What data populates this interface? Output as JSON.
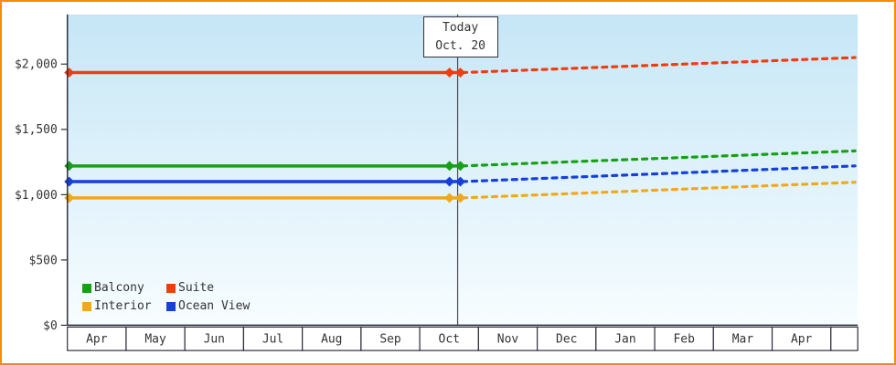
{
  "frame": {
    "border_color": "#ff8a00"
  },
  "chart_data": {
    "type": "line",
    "title": "",
    "plot_bg_top": "#c6e6f6",
    "plot_bg_bottom": "#f7fdff",
    "axis_color": "#2e2e3e",
    "today_line_color": "#4a4a55",
    "grid": false,
    "legend_position": "bottom-left-inside",
    "today": {
      "line1": "Today",
      "line2": "Oct. 20",
      "x_category": "Oct",
      "fraction_of_month": 0.645
    },
    "x_categories": [
      "Apr",
      "May",
      "Jun",
      "Jul",
      "Aug",
      "Sep",
      "Oct",
      "Nov",
      "Dec",
      "Jan",
      "Feb",
      "Mar",
      "Apr"
    ],
    "y_ticks": [
      {
        "label": "$0",
        "value": 0
      },
      {
        "label": "$500",
        "value": 500
      },
      {
        "label": "$1,000",
        "value": 1000
      },
      {
        "label": "$1,500",
        "value": 1500
      },
      {
        "label": "$2,000",
        "value": 2000
      }
    ],
    "ylim": [
      0,
      2380
    ],
    "dashed_after_today": true,
    "series": [
      {
        "name": "Suite",
        "color": "#ee3d0e",
        "current_price": 1935,
        "forecast_end_price": 2050
      },
      {
        "name": "Balcony",
        "color": "#16a016",
        "current_price": 1220,
        "forecast_end_price": 1335
      },
      {
        "name": "Ocean View",
        "color": "#1540d9",
        "current_price": 1100,
        "forecast_end_price": 1220
      },
      {
        "name": "Interior",
        "color": "#f0a81c",
        "current_price": 975,
        "forecast_end_price": 1095
      }
    ],
    "legend": [
      {
        "label": "Balcony",
        "color": "#16a016"
      },
      {
        "label": "Suite",
        "color": "#ee3d0e"
      },
      {
        "label": "Interior",
        "color": "#f0a81c"
      },
      {
        "label": "Ocean View",
        "color": "#1540d9"
      }
    ]
  }
}
